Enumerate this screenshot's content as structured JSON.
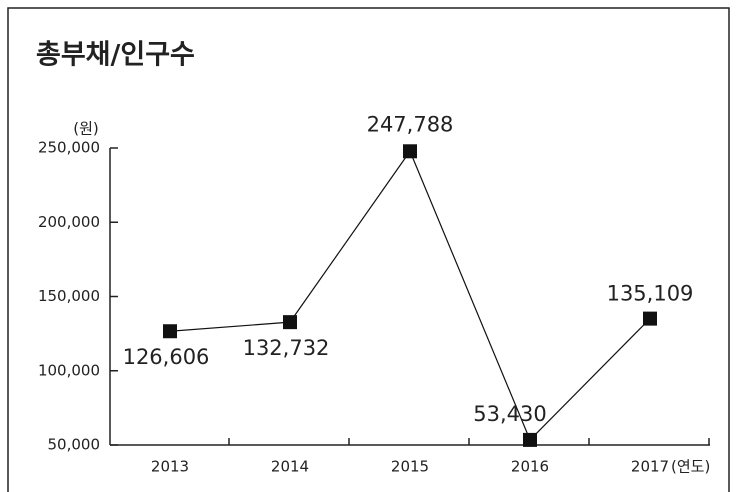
{
  "chart_data": {
    "type": "line",
    "title": "총부채/인구수",
    "y_label": "(원)",
    "x_label": "(연도)",
    "categories": [
      "2013",
      "2014",
      "2015",
      "2016",
      "2017"
    ],
    "values": [
      126606,
      132732,
      247788,
      53430,
      135109
    ],
    "value_labels": [
      "126,606",
      "132,732",
      "247,788",
      "53,430",
      "135,109"
    ],
    "color": "#111111",
    "ylim": [
      50000,
      250000
    ],
    "yticks": [
      {
        "value": 50000,
        "label": "50,000"
      },
      {
        "value": 100000,
        "label": "100,000"
      },
      {
        "value": 150000,
        "label": "150,000"
      },
      {
        "value": 200000,
        "label": "200,000"
      },
      {
        "value": 250000,
        "label": "250,000"
      }
    ],
    "grid": false
  }
}
